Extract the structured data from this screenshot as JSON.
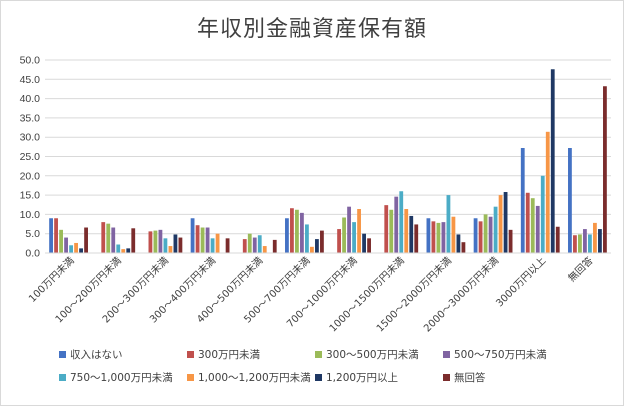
{
  "chart_data": {
    "type": "bar",
    "title": "年収別金融資産保有額",
    "xlabel": "",
    "ylabel": "",
    "ylim": [
      0,
      50
    ],
    "yticks": [
      "0.0",
      "5.0",
      "10.0",
      "15.0",
      "20.0",
      "25.0",
      "30.0",
      "35.0",
      "40.0",
      "45.0",
      "50.0"
    ],
    "grid": true,
    "legend_position": "bottom",
    "categories": [
      "100万円未満",
      "100〜200万円未満",
      "200〜300万円未満",
      "300〜400万円未満",
      "400〜500万円未満",
      "500〜700万円未満",
      "700〜1000万円未満",
      "1000〜1500万円未満",
      "1500〜2000万円未満",
      "2000〜3000万円未満",
      "3000万円以上",
      "無回答"
    ],
    "series": [
      {
        "name": "収入はない",
        "color": "#4472C4",
        "values": [
          9.0,
          0,
          0,
          9.0,
          0,
          9.0,
          0,
          0,
          9.0,
          9.0,
          27.2,
          27.2
        ]
      },
      {
        "name": "300万円未満",
        "color": "#C0504D",
        "values": [
          9.0,
          8.0,
          5.6,
          7.2,
          3.6,
          11.6,
          6.2,
          12.4,
          8.2,
          8.2,
          15.6,
          4.6
        ]
      },
      {
        "name": "300〜500万円未満",
        "color": "#9BBB59",
        "values": [
          6.0,
          7.6,
          5.8,
          6.6,
          5.0,
          11.2,
          9.2,
          11.2,
          7.8,
          10.0,
          14.2,
          4.8
        ]
      },
      {
        "name": "500〜750万円未満",
        "color": "#8064A2",
        "values": [
          4.0,
          6.6,
          6.0,
          6.6,
          4.0,
          10.4,
          12.0,
          14.6,
          8.0,
          9.4,
          12.2,
          6.2
        ]
      },
      {
        "name": "750〜1,000万円未満",
        "color": "#4BACC6",
        "values": [
          2.0,
          2.2,
          3.8,
          3.8,
          4.6,
          7.4,
          8.0,
          16.0,
          15.0,
          12.0,
          20.0,
          4.8
        ]
      },
      {
        "name": "1,000〜1,200万円未満",
        "color": "#F79646",
        "values": [
          2.6,
          1.0,
          1.8,
          5.0,
          1.8,
          1.6,
          11.4,
          11.4,
          9.4,
          15.0,
          31.4,
          7.8
        ]
      },
      {
        "name": "1,200万円以上",
        "color": "#1F3864",
        "values": [
          1.2,
          1.2,
          4.8,
          0,
          0,
          3.6,
          5.0,
          9.6,
          4.8,
          15.8,
          47.6,
          6.2
        ]
      },
      {
        "name": "無回答",
        "color": "#7B2C2C",
        "values": [
          6.6,
          6.4,
          4.0,
          3.8,
          3.4,
          5.8,
          3.8,
          7.4,
          2.8,
          6.0,
          6.8,
          43.2
        ]
      }
    ]
  }
}
